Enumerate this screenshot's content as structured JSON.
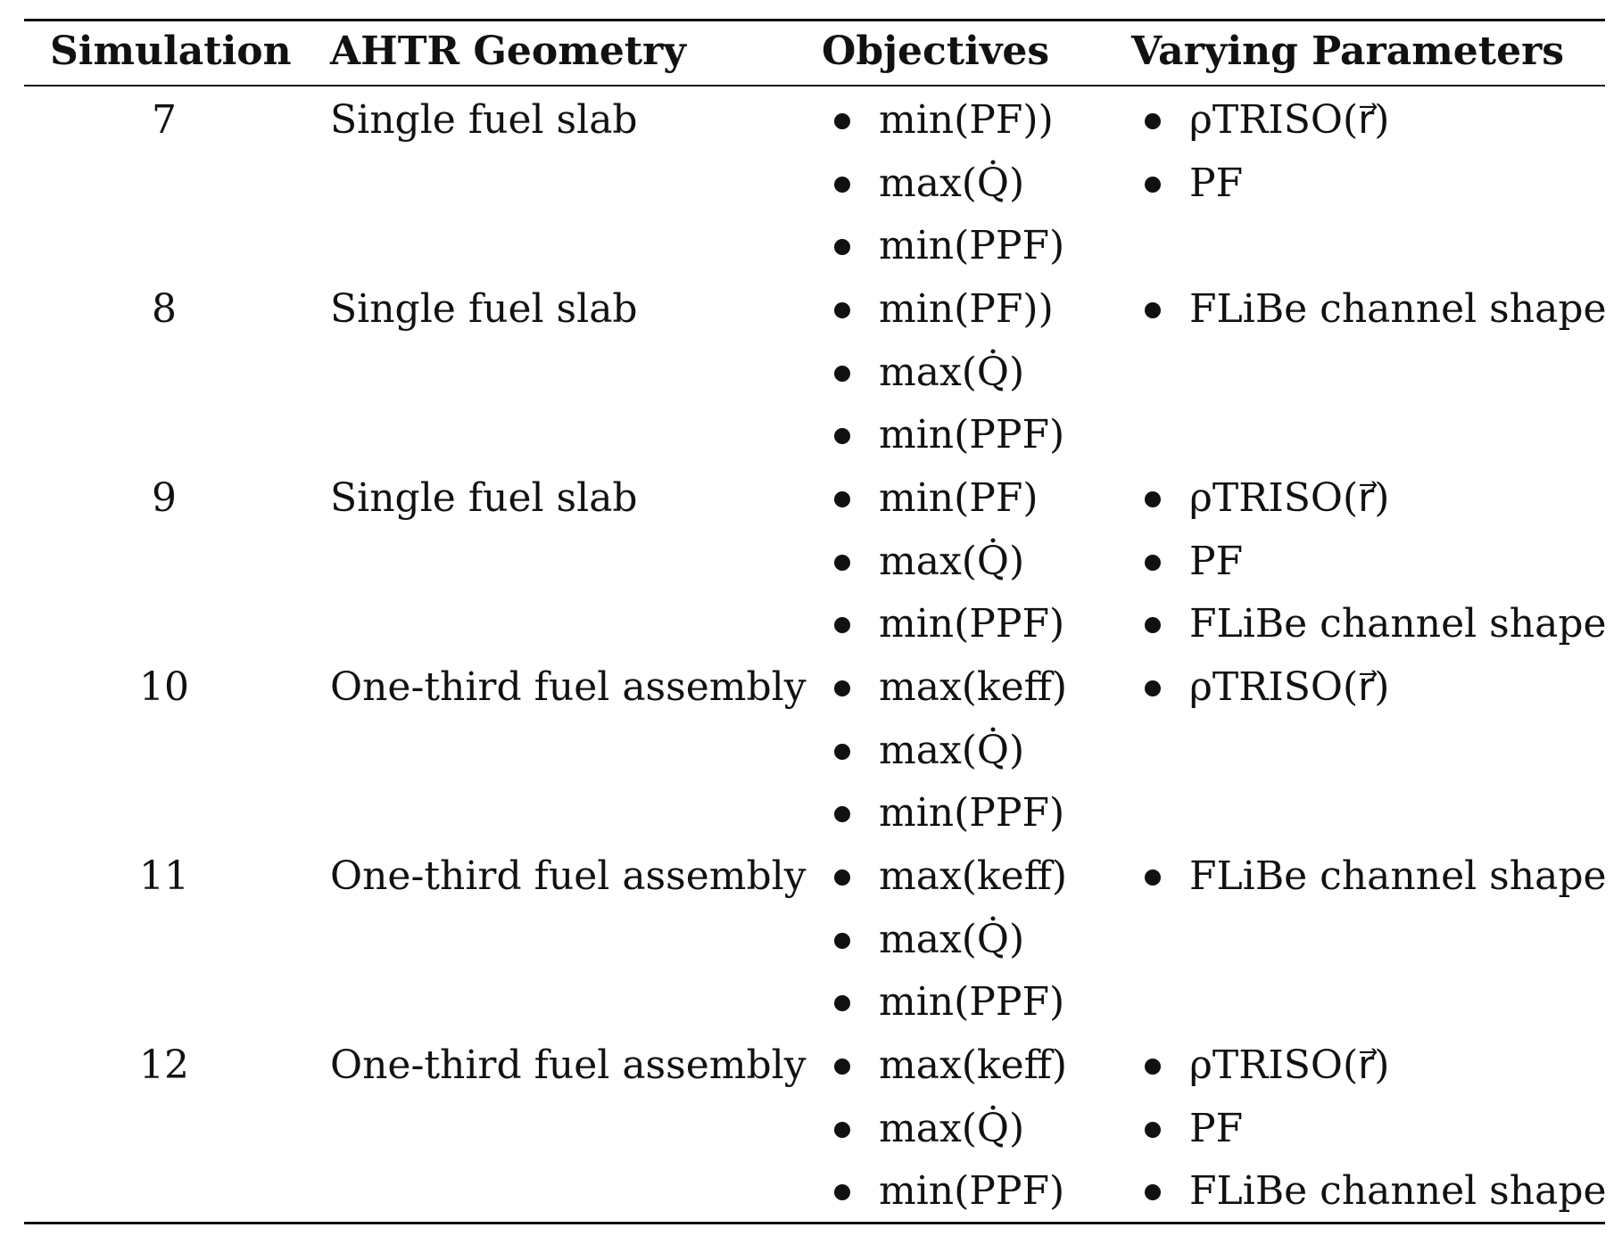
{
  "table": {
    "headers": {
      "simulation": "Simulation",
      "geometry": "AHTR Geometry",
      "objectives": "Objectives",
      "parameters": "Varying Parameters"
    },
    "rows": [
      {
        "simulation": "7",
        "geometry": "Single fuel slab",
        "objectives": [
          "min(PF))",
          "max(Q̇)",
          "min(PPF)"
        ],
        "parameters": [
          "ρTRISO(r⃗)",
          "PF"
        ]
      },
      {
        "simulation": "8",
        "geometry": "Single fuel slab",
        "objectives": [
          "min(PF))",
          "max(Q̇)",
          "min(PPF)"
        ],
        "parameters": [
          "FLiBe channel shape"
        ]
      },
      {
        "simulation": "9",
        "geometry": "Single fuel slab",
        "objectives": [
          "min(PF)",
          "max(Q̇)",
          "min(PPF)"
        ],
        "parameters": [
          "ρTRISO(r⃗)",
          "PF",
          "FLiBe channel shape"
        ]
      },
      {
        "simulation": "10",
        "geometry": "One-third fuel assembly",
        "objectives": [
          "max(keff)",
          "max(Q̇)",
          "min(PPF)"
        ],
        "parameters": [
          "ρTRISO(r⃗)"
        ]
      },
      {
        "simulation": "11",
        "geometry": "One-third fuel assembly",
        "objectives": [
          "max(keff)",
          "max(Q̇)",
          "min(PPF)"
        ],
        "parameters": [
          "FLiBe channel shape"
        ]
      },
      {
        "simulation": "12",
        "geometry": "One-third fuel assembly",
        "objectives": [
          "max(keff)",
          "max(Q̇)",
          "min(PPF)"
        ],
        "parameters": [
          "ρTRISO(r⃗)",
          "PF",
          "FLiBe channel shape"
        ]
      }
    ]
  }
}
